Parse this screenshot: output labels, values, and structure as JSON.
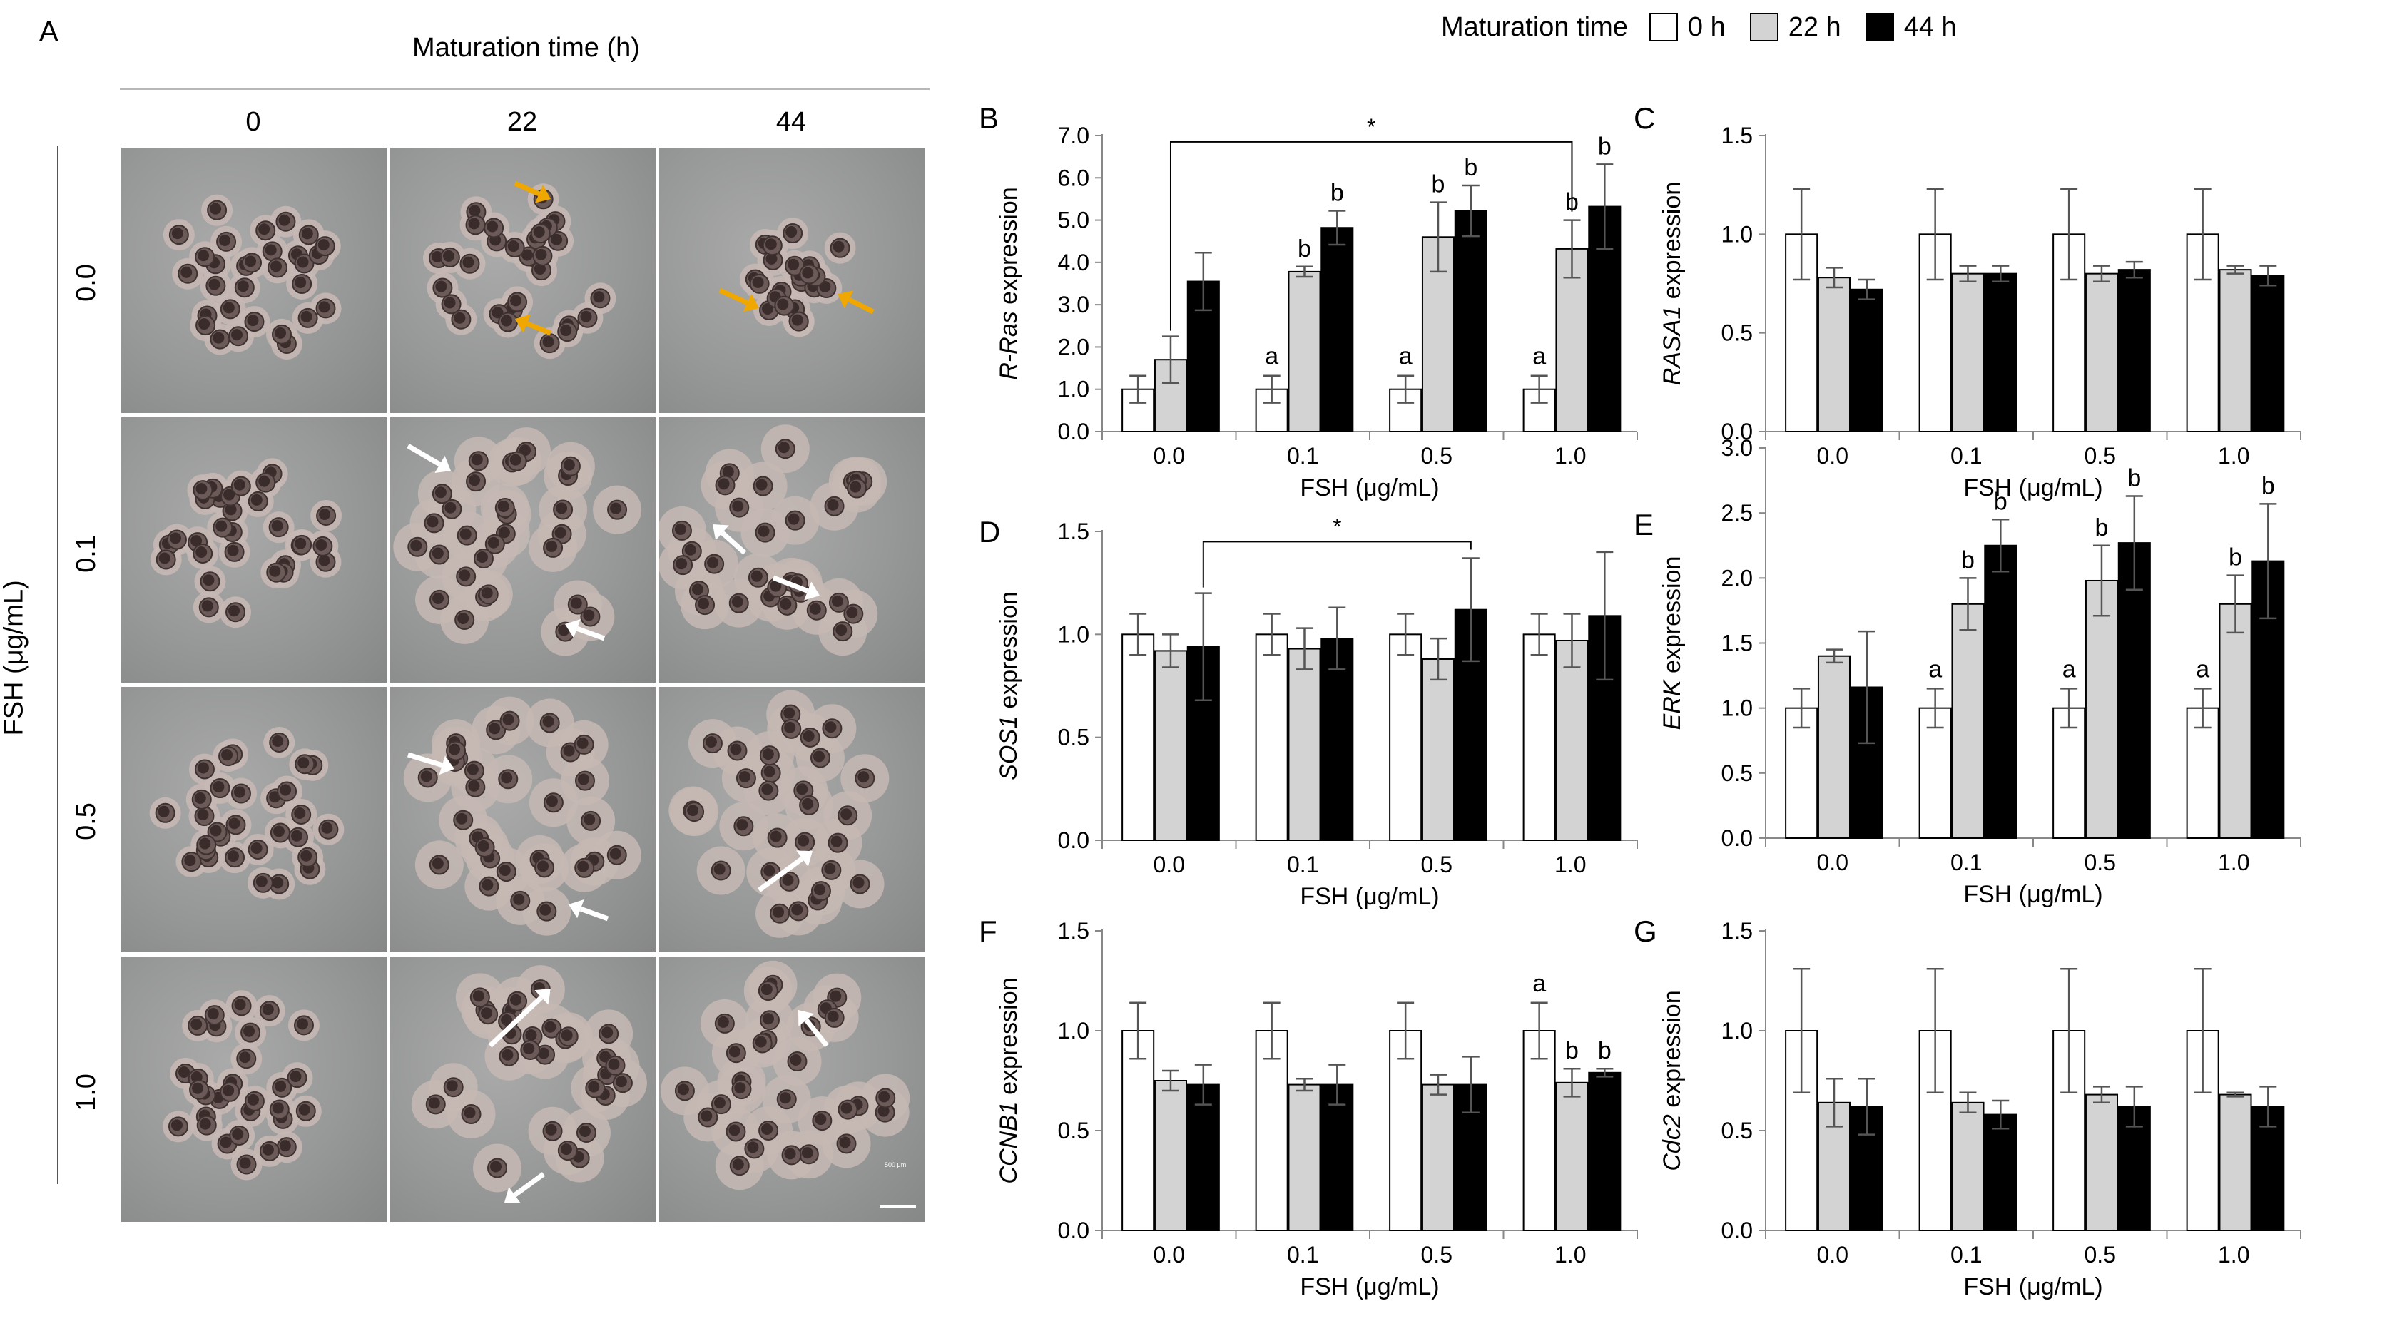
{
  "panelA": {
    "label": "A",
    "header": "Maturation time (h)",
    "columns": [
      "0",
      "22",
      "44"
    ],
    "y_title": "FSH (μg/mL)",
    "rows": [
      "0.0",
      "0.1",
      "0.5",
      "1.0"
    ],
    "scale_bar": "500 μm"
  },
  "legend": {
    "title": "Maturation time",
    "items": [
      {
        "label": "0 h",
        "color": "#ffffff"
      },
      {
        "label": "22 h",
        "color": "#d3d3d3"
      },
      {
        "label": "44 h",
        "color": "#000000"
      }
    ]
  },
  "chart_data": [
    {
      "panel": "B",
      "type": "bar",
      "ylabel_italic": "R-Ras",
      "ylabel_rest": " expression",
      "xlabel": "FSH (μg/mL)",
      "categories": [
        "0.0",
        "0.1",
        "0.5",
        "1.0"
      ],
      "ylim": [
        0,
        7
      ],
      "yticks": [
        "0.0",
        "1.0",
        "2.0",
        "3.0",
        "4.0",
        "5.0",
        "6.0",
        "7.0"
      ],
      "ystep": 1,
      "series": [
        {
          "name": "0 h",
          "values": [
            1.0,
            1.0,
            1.0,
            1.0
          ],
          "errors": [
            0.32,
            0.32,
            0.32,
            0.32
          ]
        },
        {
          "name": "22 h",
          "values": [
            1.7,
            3.78,
            4.6,
            4.32
          ],
          "errors": [
            0.55,
            0.12,
            0.82,
            0.68
          ]
        },
        {
          "name": "44 h",
          "values": [
            3.55,
            4.82,
            5.22,
            5.32
          ],
          "errors": [
            0.68,
            0.4,
            0.6,
            1.0
          ]
        }
      ],
      "annotations": [
        {
          "text": "a",
          "cat": 1,
          "series": 0
        },
        {
          "text": "b",
          "cat": 1,
          "series": 1
        },
        {
          "text": "b",
          "cat": 1,
          "series": 2
        },
        {
          "text": "a",
          "cat": 2,
          "series": 0
        },
        {
          "text": "b",
          "cat": 2,
          "series": 1
        },
        {
          "text": "b",
          "cat": 2,
          "series": 2
        },
        {
          "text": "a",
          "cat": 3,
          "series": 0
        },
        {
          "text": "b",
          "cat": 3,
          "series": 1
        },
        {
          "text": "b",
          "cat": 3,
          "series": 2
        }
      ],
      "bracket": {
        "text": "*",
        "from_cat": 0,
        "from_series": 1,
        "to_cat": 3,
        "to_series": 1,
        "y": 6.85
      }
    },
    {
      "panel": "C",
      "type": "bar",
      "ylabel_italic": "RASA1",
      "ylabel_rest": " expression",
      "xlabel": "FSH (μg/mL)",
      "categories": [
        "0.0",
        "0.1",
        "0.5",
        "1.0"
      ],
      "ylim": [
        0,
        1.5
      ],
      "yticks": [
        "0.0",
        "0.5",
        "1.0",
        "1.5"
      ],
      "ystep": 0.5,
      "series": [
        {
          "name": "0 h",
          "values": [
            1.0,
            1.0,
            1.0,
            1.0
          ],
          "errors": [
            0.23,
            0.23,
            0.23,
            0.23
          ]
        },
        {
          "name": "22 h",
          "values": [
            0.78,
            0.8,
            0.8,
            0.82
          ],
          "errors": [
            0.05,
            0.04,
            0.04,
            0.02
          ]
        },
        {
          "name": "44 h",
          "values": [
            0.72,
            0.8,
            0.82,
            0.79
          ],
          "errors": [
            0.05,
            0.04,
            0.04,
            0.05
          ]
        }
      ],
      "annotations": [],
      "bracket": null
    },
    {
      "panel": "D",
      "type": "bar",
      "ylabel_italic": "SOS1",
      "ylabel_rest": " expression",
      "xlabel": "FSH (μg/mL)",
      "categories": [
        "0.0",
        "0.1",
        "0.5",
        "1.0"
      ],
      "ylim": [
        0,
        1.5
      ],
      "yticks": [
        "0.0",
        "0.5",
        "1.0",
        "1.5"
      ],
      "ystep": 0.5,
      "series": [
        {
          "name": "0 h",
          "values": [
            1.0,
            1.0,
            1.0,
            1.0
          ],
          "errors": [
            0.1,
            0.1,
            0.1,
            0.1
          ]
        },
        {
          "name": "22 h",
          "values": [
            0.92,
            0.93,
            0.88,
            0.97
          ],
          "errors": [
            0.08,
            0.1,
            0.1,
            0.13
          ]
        },
        {
          "name": "44 h",
          "values": [
            0.94,
            0.98,
            1.12,
            1.09
          ],
          "errors": [
            0.26,
            0.15,
            0.25,
            0.31
          ]
        }
      ],
      "annotations": [],
      "bracket": {
        "text": "*",
        "from_cat": 0,
        "from_series": 2,
        "to_cat": 2,
        "to_series": 2,
        "y": 1.45
      }
    },
    {
      "panel": "E",
      "type": "bar",
      "ylabel_italic": "ERK",
      "ylabel_rest": " expression",
      "xlabel": "FSH (μg/mL)",
      "categories": [
        "0.0",
        "0.1",
        "0.5",
        "1.0"
      ],
      "ylim": [
        0,
        3
      ],
      "yticks": [
        "0.0",
        "0.5",
        "1.0",
        "1.5",
        "2.0",
        "2.5",
        "3.0"
      ],
      "ystep": 0.5,
      "series": [
        {
          "name": "0 h",
          "values": [
            1.0,
            1.0,
            1.0,
            1.0
          ],
          "errors": [
            0.15,
            0.15,
            0.15,
            0.15
          ]
        },
        {
          "name": "22 h",
          "values": [
            1.4,
            1.8,
            1.98,
            1.8
          ],
          "errors": [
            0.05,
            0.2,
            0.27,
            0.22
          ]
        },
        {
          "name": "44 h",
          "values": [
            1.16,
            2.25,
            2.27,
            2.13
          ],
          "errors": [
            0.43,
            0.2,
            0.36,
            0.44
          ]
        }
      ],
      "annotations": [
        {
          "text": "a",
          "cat": 1,
          "series": 0
        },
        {
          "text": "b",
          "cat": 1,
          "series": 1
        },
        {
          "text": "b",
          "cat": 1,
          "series": 2
        },
        {
          "text": "a",
          "cat": 2,
          "series": 0
        },
        {
          "text": "b",
          "cat": 2,
          "series": 1
        },
        {
          "text": "b",
          "cat": 2,
          "series": 2
        },
        {
          "text": "a",
          "cat": 3,
          "series": 0
        },
        {
          "text": "b",
          "cat": 3,
          "series": 1
        },
        {
          "text": "b",
          "cat": 3,
          "series": 2
        }
      ],
      "bracket": null
    },
    {
      "panel": "F",
      "type": "bar",
      "ylabel_italic": "CCNB1",
      "ylabel_rest": " expression",
      "xlabel": "FSH (μg/mL)",
      "categories": [
        "0.0",
        "0.1",
        "0.5",
        "1.0"
      ],
      "ylim": [
        0,
        1.5
      ],
      "yticks": [
        "0.0",
        "0.5",
        "1.0",
        "1.5"
      ],
      "ystep": 0.5,
      "series": [
        {
          "name": "0 h",
          "values": [
            1.0,
            1.0,
            1.0,
            1.0
          ],
          "errors": [
            0.14,
            0.14,
            0.14,
            0.14
          ]
        },
        {
          "name": "22 h",
          "values": [
            0.75,
            0.73,
            0.73,
            0.74
          ],
          "errors": [
            0.05,
            0.03,
            0.05,
            0.07
          ]
        },
        {
          "name": "44 h",
          "values": [
            0.73,
            0.73,
            0.73,
            0.79
          ],
          "errors": [
            0.1,
            0.1,
            0.14,
            0.02
          ]
        }
      ],
      "annotations": [
        {
          "text": "a",
          "cat": 3,
          "series": 0
        },
        {
          "text": "b",
          "cat": 3,
          "series": 1
        },
        {
          "text": "b",
          "cat": 3,
          "series": 2
        }
      ],
      "bracket": null
    },
    {
      "panel": "G",
      "type": "bar",
      "ylabel_italic": "Cdc2",
      "ylabel_rest": " expression",
      "xlabel": "FSH (μg/mL)",
      "categories": [
        "0.0",
        "0.1",
        "0.5",
        "1.0"
      ],
      "ylim": [
        0,
        1.5
      ],
      "yticks": [
        "0.0",
        "0.5",
        "1.0",
        "1.5"
      ],
      "ystep": 0.5,
      "series": [
        {
          "name": "0 h",
          "values": [
            1.0,
            1.0,
            1.0,
            1.0
          ],
          "errors": [
            0.31,
            0.31,
            0.31,
            0.31
          ]
        },
        {
          "name": "22 h",
          "values": [
            0.64,
            0.64,
            0.68,
            0.68
          ],
          "errors": [
            0.12,
            0.05,
            0.04,
            0.01
          ]
        },
        {
          "name": "44 h",
          "values": [
            0.62,
            0.58,
            0.62,
            0.62
          ],
          "errors": [
            0.14,
            0.07,
            0.1,
            0.1
          ]
        }
      ],
      "annotations": [],
      "bracket": null
    }
  ]
}
